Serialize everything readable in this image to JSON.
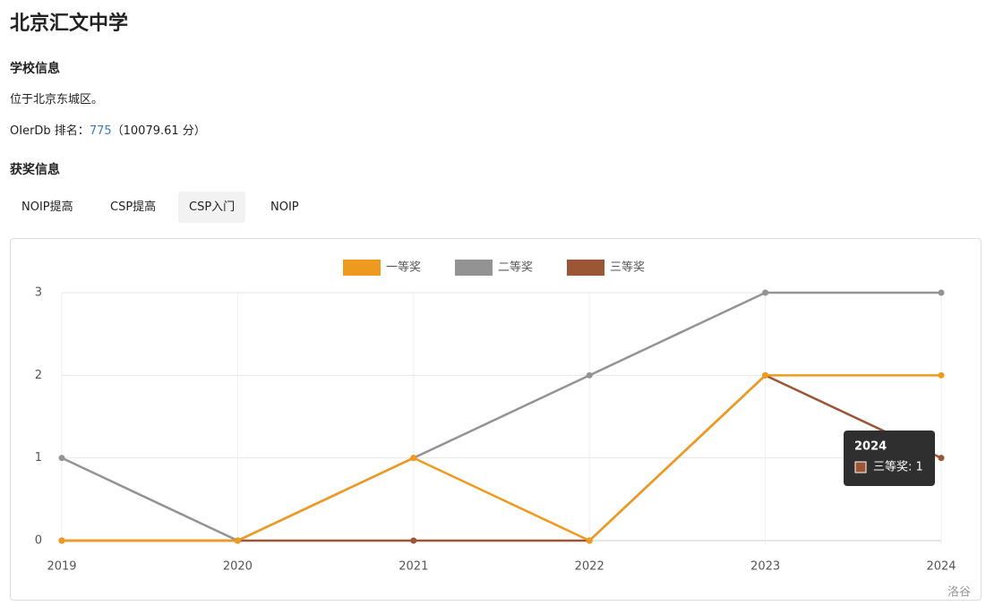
{
  "header": {
    "title": "北京汇文中学"
  },
  "info": {
    "heading": "学校信息",
    "location": "位于北京东城区。",
    "rank_label": "OIerDb 排名：",
    "rank": "775",
    "score": "（10079.61 分）"
  },
  "awards": {
    "heading": "获奖信息",
    "tabs": [
      "NOIP提高",
      "CSP提高",
      "CSP入门",
      "NOIP"
    ],
    "active_tab": 2
  },
  "chart_data": {
    "type": "line",
    "categories": [
      "2019",
      "2020",
      "2021",
      "2022",
      "2023",
      "2024"
    ],
    "series": [
      {
        "name": "一等奖",
        "color": "#ee9a1f",
        "values": [
          0,
          0,
          1,
          0,
          2,
          2
        ]
      },
      {
        "name": "二等奖",
        "color": "#939393",
        "values": [
          1,
          0,
          1,
          2,
          3,
          3
        ]
      },
      {
        "name": "三等奖",
        "color": "#9c5636",
        "values": [
          0,
          0,
          0,
          0,
          2,
          1
        ]
      }
    ],
    "ylim": [
      0,
      3
    ],
    "yticks": [
      0,
      1,
      2,
      3
    ],
    "grid": true,
    "legend": "top",
    "tooltip": {
      "title": "2024",
      "text": "三等奖: 1",
      "series": 2
    },
    "watermark": "洛谷"
  }
}
